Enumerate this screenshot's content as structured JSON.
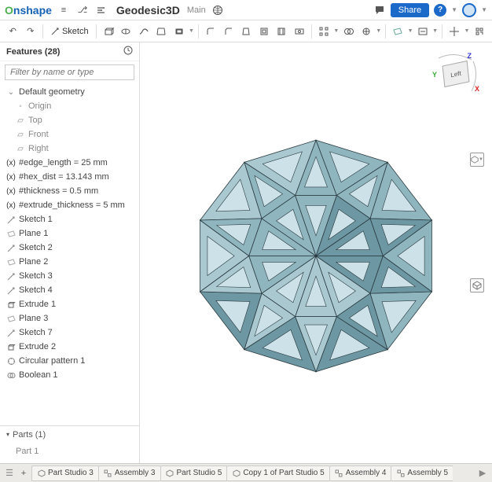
{
  "header": {
    "logo_text": "nshape",
    "doc_title": "Geodesic3D",
    "branch": "Main",
    "share_label": "Share"
  },
  "toolbar": {
    "sketch_label": "Sketch"
  },
  "features": {
    "title": "Features (28)",
    "filter_placeholder": "Filter by name or type",
    "group": "Default geometry",
    "defaults": [
      "Origin",
      "Top",
      "Front",
      "Right"
    ],
    "vars": [
      "#edge_length = 25 mm",
      "#hex_dist = 13.143 mm",
      "#thickness = 0.5 mm",
      "#extrude_thickness = 5 mm"
    ],
    "items": [
      {
        "icon": "sketch",
        "label": "Sketch 1"
      },
      {
        "icon": "plane",
        "label": "Plane 1"
      },
      {
        "icon": "sketch",
        "label": "Sketch 2"
      },
      {
        "icon": "plane",
        "label": "Plane 2"
      },
      {
        "icon": "sketch",
        "label": "Sketch 3"
      },
      {
        "icon": "sketch",
        "label": "Sketch 4"
      },
      {
        "icon": "extrude",
        "label": "Extrude 1"
      },
      {
        "icon": "plane",
        "label": "Plane 3"
      },
      {
        "icon": "sketch",
        "label": "Sketch 7"
      },
      {
        "icon": "extrude",
        "label": "Extrude 2"
      },
      {
        "icon": "pattern",
        "label": "Circular pattern 1"
      },
      {
        "icon": "bool",
        "label": "Boolean 1"
      }
    ]
  },
  "parts": {
    "title": "Parts (1)",
    "items": [
      "Part 1"
    ]
  },
  "tabs": [
    {
      "type": "part",
      "label": "Part Studio 3"
    },
    {
      "type": "asm",
      "label": "Assembly 3"
    },
    {
      "type": "part",
      "label": "Part Studio 5"
    },
    {
      "type": "part",
      "label": "Copy 1 of Part Studio 5"
    },
    {
      "type": "asm",
      "label": "Assembly 4"
    },
    {
      "type": "asm",
      "label": "Assembly 5"
    }
  ],
  "viewcube": {
    "face": "Left"
  },
  "colors": {
    "model_fill": "#8fb5bf",
    "model_fill_dark": "#6d97a2",
    "model_fill_light": "#a9c8d0",
    "model_stroke": "#2a3a40"
  }
}
